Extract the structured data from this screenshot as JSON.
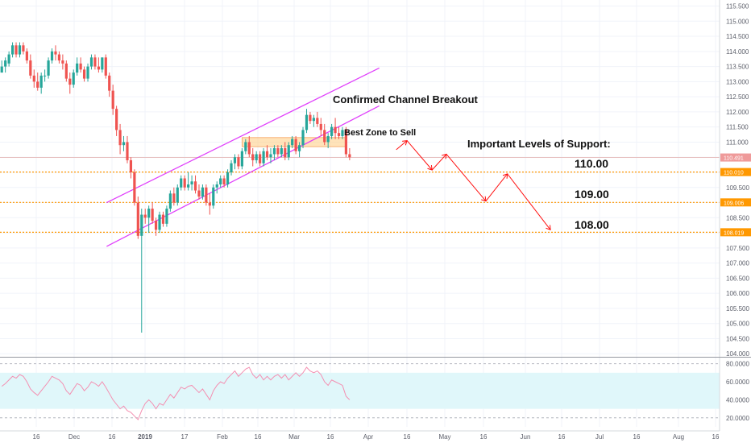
{
  "chart_data": {
    "type": "candlestick",
    "title": "",
    "colors": {
      "up": "#26a69a",
      "down": "#ef5350",
      "channel": "#e040fb",
      "support": "#ff9800",
      "projection": "#ff1111",
      "sell_zone": "#ffcc80",
      "rsi_line": "#f48fb1",
      "rsi_band": "#e0f7fa",
      "price_tag": "#ef9a9a"
    },
    "price_axis": {
      "ylim": [
        103.9,
        115.7
      ],
      "ticks": [
        "115.500",
        "115.000",
        "114.500",
        "114.000",
        "113.500",
        "113.000",
        "112.500",
        "112.000",
        "111.500",
        "111.000",
        "110.500",
        "110.000",
        "109.500",
        "109.000",
        "108.500",
        "108.000",
        "107.500",
        "107.000",
        "106.500",
        "106.000",
        "105.500",
        "105.000",
        "104.500",
        "104.000"
      ]
    },
    "time_axis": {
      "ticks": [
        "16",
        "Dec",
        "16",
        "2019",
        "17",
        "Feb",
        "16",
        "Mar",
        "16",
        "Apr",
        "16",
        "May",
        "16",
        "Jun",
        "16",
        "Jul",
        "16",
        "Aug",
        "16"
      ]
    },
    "price_tags": [
      {
        "label": "110.491",
        "value": 110.491
      },
      {
        "label": "110.010",
        "value": 110.01
      },
      {
        "label": "109.006",
        "value": 109.006
      },
      {
        "label": "108.019",
        "value": 108.019
      }
    ],
    "support_levels": [
      110.01,
      109.006,
      108.019
    ],
    "annotations": {
      "breakout": "Confirmed Channel Breakout",
      "sell_zone": "Best Zone to Sell",
      "support_heading": "Important Levels of Support:",
      "level_1": "110.00",
      "level_2": "109.00",
      "level_3": "108.00"
    },
    "sell_zone": {
      "y_low": 110.85,
      "y_high": 111.15
    },
    "channel": {
      "lower": {
        "from": [
          18,
          107.55
        ],
        "to": [
          121,
          112.2
        ]
      },
      "upper": {
        "from": [
          18,
          109.0
        ],
        "to": [
          121,
          113.45
        ]
      }
    },
    "projection": [
      [
        110,
        110.75
      ],
      [
        113,
        111.05
      ],
      [
        120,
        110.08
      ],
      [
        124,
        110.6
      ],
      [
        135,
        109.05
      ],
      [
        141,
        109.95
      ],
      [
        153,
        108.1
      ]
    ],
    "candles": [
      [
        0,
        113.3,
        113.7,
        113.3,
        113.5
      ],
      [
        1,
        113.5,
        113.8,
        113.3,
        113.7
      ],
      [
        2,
        113.6,
        114.0,
        113.5,
        113.9
      ],
      [
        3,
        113.9,
        114.3,
        113.8,
        114.2
      ],
      [
        4,
        114.2,
        114.3,
        113.8,
        113.9
      ],
      [
        5,
        113.9,
        114.3,
        113.8,
        114.2
      ],
      [
        6,
        114.2,
        114.3,
        113.9,
        114.0
      ],
      [
        7,
        114.0,
        114.1,
        113.6,
        113.7
      ],
      [
        8,
        113.7,
        113.9,
        113.1,
        113.2
      ],
      [
        9,
        113.2,
        113.4,
        112.8,
        113.0
      ],
      [
        10,
        113.0,
        113.3,
        112.7,
        112.8
      ],
      [
        11,
        112.8,
        113.3,
        112.6,
        113.2
      ],
      [
        12,
        113.2,
        113.4,
        113.0,
        113.2
      ],
      [
        13,
        113.2,
        113.8,
        113.1,
        113.7
      ],
      [
        14,
        113.7,
        114.1,
        113.6,
        114.0
      ],
      [
        15,
        114.0,
        114.2,
        113.7,
        113.9
      ],
      [
        16,
        113.9,
        114.0,
        113.6,
        113.7
      ],
      [
        17,
        113.7,
        113.9,
        113.4,
        113.6
      ],
      [
        18,
        113.6,
        113.7,
        113.0,
        113.1
      ],
      [
        19,
        113.1,
        113.3,
        112.6,
        112.9
      ],
      [
        20,
        112.9,
        113.4,
        112.8,
        113.3
      ],
      [
        21,
        113.3,
        113.8,
        113.2,
        113.6
      ],
      [
        22,
        113.6,
        113.8,
        113.3,
        113.4
      ],
      [
        23,
        113.4,
        113.5,
        113.0,
        113.1
      ],
      [
        24,
        113.1,
        113.6,
        113.0,
        113.5
      ],
      [
        25,
        113.5,
        113.9,
        113.4,
        113.8
      ],
      [
        26,
        113.8,
        113.9,
        113.4,
        113.5
      ],
      [
        27,
        113.5,
        113.8,
        113.3,
        113.4
      ],
      [
        28,
        113.4,
        113.8,
        113.3,
        113.8
      ],
      [
        29,
        113.8,
        113.9,
        113.1,
        113.2
      ],
      [
        30,
        113.2,
        113.3,
        112.5,
        112.7
      ],
      [
        31,
        112.7,
        112.9,
        111.9,
        112.1
      ],
      [
        32,
        112.1,
        112.2,
        111.2,
        111.4
      ],
      [
        33,
        111.4,
        111.6,
        110.6,
        110.9
      ],
      [
        34,
        110.9,
        111.2,
        110.7,
        111.0
      ],
      [
        35,
        111.0,
        111.2,
        110.3,
        110.4
      ],
      [
        36,
        110.4,
        110.5,
        109.8,
        110.0
      ],
      [
        37,
        110.0,
        110.1,
        108.9,
        109.0
      ],
      [
        38,
        109.0,
        109.2,
        107.8,
        107.9
      ],
      [
        39,
        107.9,
        108.8,
        104.7,
        108.6
      ],
      [
        40,
        108.6,
        108.8,
        108.3,
        108.5
      ],
      [
        41,
        108.5,
        108.9,
        108.0,
        108.8
      ],
      [
        42,
        108.8,
        109.0,
        108.3,
        108.4
      ],
      [
        43,
        108.4,
        108.5,
        107.9,
        108.1
      ],
      [
        44,
        108.1,
        108.7,
        108.0,
        108.6
      ],
      [
        45,
        108.6,
        108.7,
        108.2,
        108.3
      ],
      [
        46,
        108.3,
        108.9,
        108.2,
        108.8
      ],
      [
        47,
        108.8,
        109.4,
        108.7,
        109.3
      ],
      [
        48,
        109.3,
        109.5,
        108.9,
        109.0
      ],
      [
        49,
        109.0,
        109.6,
        108.9,
        109.5
      ],
      [
        50,
        109.5,
        109.9,
        109.4,
        109.8
      ],
      [
        51,
        109.8,
        109.9,
        109.4,
        109.5
      ],
      [
        52,
        109.5,
        110.0,
        109.4,
        109.6
      ],
      [
        53,
        109.6,
        109.9,
        109.4,
        109.7
      ],
      [
        54,
        109.7,
        109.9,
        109.3,
        109.4
      ],
      [
        55,
        109.4,
        109.6,
        109.1,
        109.2
      ],
      [
        56,
        109.2,
        109.6,
        109.1,
        109.5
      ],
      [
        57,
        109.5,
        109.6,
        108.9,
        109.0
      ],
      [
        58,
        109.0,
        109.3,
        108.6,
        108.9
      ],
      [
        59,
        108.9,
        109.6,
        108.8,
        109.5
      ],
      [
        60,
        109.5,
        109.7,
        109.3,
        109.6
      ],
      [
        61,
        109.6,
        109.9,
        109.5,
        109.8
      ],
      [
        62,
        109.8,
        109.9,
        109.5,
        109.6
      ],
      [
        63,
        109.6,
        110.1,
        109.5,
        110.0
      ],
      [
        64,
        110.0,
        110.4,
        109.9,
        110.3
      ],
      [
        65,
        110.3,
        110.6,
        110.1,
        110.5
      ],
      [
        66,
        110.5,
        110.6,
        110.1,
        110.2
      ],
      [
        67,
        110.2,
        110.8,
        110.1,
        110.7
      ],
      [
        68,
        110.7,
        111.1,
        110.6,
        111.0
      ],
      [
        69,
        111.0,
        111.2,
        110.5,
        110.6
      ],
      [
        70,
        110.6,
        110.8,
        110.2,
        110.4
      ],
      [
        71,
        110.4,
        110.7,
        110.3,
        110.6
      ],
      [
        72,
        110.6,
        110.7,
        110.2,
        110.3
      ],
      [
        73,
        110.3,
        110.8,
        110.2,
        110.7
      ],
      [
        74,
        110.7,
        110.9,
        110.4,
        110.5
      ],
      [
        75,
        110.5,
        110.8,
        110.3,
        110.6
      ],
      [
        76,
        110.6,
        110.9,
        110.4,
        110.8
      ],
      [
        77,
        110.8,
        110.9,
        110.5,
        110.6
      ],
      [
        78,
        110.6,
        110.9,
        110.5,
        110.8
      ],
      [
        79,
        110.8,
        111.0,
        110.4,
        110.5
      ],
      [
        80,
        110.5,
        111.0,
        110.4,
        110.9
      ],
      [
        81,
        110.9,
        111.2,
        110.8,
        111.1
      ],
      [
        82,
        111.1,
        111.2,
        110.6,
        110.7
      ],
      [
        83,
        110.7,
        111.0,
        110.5,
        110.9
      ],
      [
        84,
        110.9,
        111.5,
        110.8,
        111.4
      ],
      [
        85,
        111.4,
        112.1,
        111.3,
        111.9
      ],
      [
        86,
        111.9,
        112.0,
        111.6,
        111.7
      ],
      [
        87,
        111.7,
        111.9,
        111.5,
        111.8
      ],
      [
        88,
        111.8,
        112.0,
        111.5,
        111.6
      ],
      [
        89,
        111.6,
        111.8,
        111.2,
        111.4
      ],
      [
        90,
        111.4,
        111.6,
        110.9,
        111.0
      ],
      [
        91,
        111.0,
        111.3,
        110.8,
        111.2
      ],
      [
        92,
        111.2,
        111.6,
        111.1,
        111.5
      ],
      [
        93,
        111.5,
        111.8,
        111.1,
        111.3
      ],
      [
        94,
        111.3,
        111.5,
        111.1,
        111.2
      ],
      [
        95,
        111.2,
        111.5,
        111.1,
        111.4
      ],
      [
        96,
        111.4,
        111.5,
        110.5,
        110.6
      ],
      [
        97,
        110.6,
        110.8,
        110.4,
        110.5
      ]
    ],
    "rsi": {
      "ylim": [
        10,
        85
      ],
      "ticks": [
        "80.0000",
        "60.0000",
        "40.0000",
        "20.0000"
      ],
      "band": [
        30,
        70
      ],
      "values": [
        55,
        58,
        62,
        66,
        64,
        68,
        66,
        60,
        52,
        48,
        45,
        50,
        55,
        60,
        66,
        64,
        62,
        58,
        50,
        46,
        52,
        58,
        56,
        50,
        54,
        60,
        58,
        55,
        60,
        54,
        47,
        40,
        35,
        30,
        33,
        28,
        26,
        22,
        18,
        28,
        36,
        40,
        36,
        30,
        36,
        34,
        40,
        46,
        42,
        48,
        54,
        52,
        55,
        56,
        52,
        48,
        52,
        46,
        40,
        50,
        56,
        60,
        58,
        64,
        68,
        72,
        66,
        70,
        74,
        76,
        68,
        64,
        68,
        62,
        66,
        62,
        66,
        68,
        64,
        68,
        62,
        66,
        70,
        66,
        70,
        76,
        72,
        70,
        72,
        68,
        60,
        56,
        62,
        60,
        58,
        56,
        44,
        40
      ]
    }
  }
}
